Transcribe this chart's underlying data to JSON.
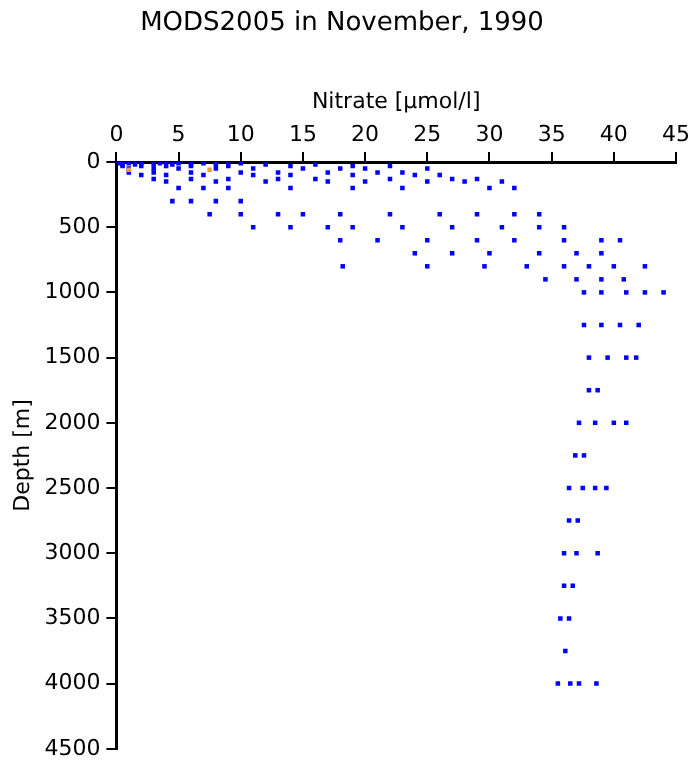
{
  "chart_data": {
    "type": "scatter",
    "title": "MODS2005 in November, 1990",
    "xlabel": "Nitrate [μmol/l]",
    "ylabel": "Depth [m]",
    "xlim": [
      0,
      45
    ],
    "xticks": [
      0,
      5,
      10,
      15,
      20,
      25,
      30,
      35,
      40,
      45
    ],
    "ylim": [
      4500,
      0
    ],
    "yticks": [
      0,
      500,
      1000,
      1500,
      2000,
      2500,
      3000,
      3500,
      4000,
      4500
    ],
    "marker": "square",
    "series": [
      {
        "color": "#0000ff",
        "x": [
          0.2,
          0.5,
          1,
          1.5,
          2,
          3,
          4,
          5,
          6,
          8,
          9,
          0.3,
          1,
          2,
          3.5,
          5,
          7,
          10,
          0.5,
          1.5,
          3,
          4.5,
          6,
          8,
          12,
          16,
          0.5,
          2,
          4,
          6,
          9,
          14,
          19,
          22,
          1,
          3,
          5,
          8,
          11,
          15,
          18,
          20,
          25,
          1,
          3,
          6,
          10,
          13,
          17,
          21,
          23,
          2,
          4,
          7,
          11,
          14,
          19,
          24,
          26,
          3,
          6,
          9,
          13,
          16,
          22,
          27,
          29,
          4,
          8,
          12,
          17,
          20,
          25,
          28,
          31,
          5,
          7,
          9,
          14,
          19,
          23,
          30,
          32,
          4.5,
          6,
          8,
          10,
          7.5,
          10,
          13,
          15,
          18,
          22,
          26,
          29,
          32,
          34,
          11,
          14,
          17,
          19,
          23,
          27,
          31,
          34,
          36,
          18,
          21,
          25,
          29,
          32,
          36,
          39,
          40.5,
          24,
          27,
          30,
          34,
          37,
          39,
          18.2,
          25,
          29.6,
          33,
          36,
          38,
          40,
          42.5,
          34.5,
          37,
          39,
          40.8,
          37.6,
          39,
          41,
          42.5,
          44,
          37.6,
          39,
          40.5,
          42,
          38,
          39.5,
          41,
          41.8,
          38,
          38.7,
          37.2,
          38.5,
          40,
          41,
          36.9,
          37.6,
          36.4,
          37.5,
          38.5,
          39.4,
          36.4,
          37.1,
          36,
          37,
          38.7,
          36,
          36.7,
          35.7,
          36.4,
          36.1,
          35.5,
          36.5,
          37.2,
          38.6
        ],
        "values": [
          0,
          0,
          0,
          0,
          0,
          0,
          0,
          0,
          0,
          0,
          0,
          10,
          10,
          10,
          10,
          10,
          10,
          10,
          20,
          20,
          20,
          20,
          20,
          20,
          20,
          20,
          30,
          30,
          30,
          30,
          30,
          30,
          30,
          30,
          50,
          50,
          50,
          50,
          50,
          50,
          50,
          50,
          50,
          80,
          80,
          80,
          80,
          80,
          80,
          80,
          80,
          100,
          100,
          100,
          100,
          100,
          100,
          100,
          100,
          130,
          130,
          130,
          130,
          130,
          130,
          130,
          130,
          150,
          150,
          150,
          150,
          150,
          150,
          150,
          150,
          200,
          200,
          200,
          200,
          200,
          200,
          200,
          200,
          300,
          300,
          300,
          300,
          400,
          400,
          400,
          400,
          400,
          400,
          400,
          400,
          400,
          400,
          500,
          500,
          500,
          500,
          500,
          500,
          500,
          500,
          500,
          600,
          600,
          600,
          600,
          600,
          600,
          600,
          600,
          700,
          700,
          700,
          700,
          700,
          700,
          800,
          800,
          800,
          800,
          800,
          800,
          800,
          800,
          900,
          900,
          900,
          900,
          1000,
          1000,
          1000,
          1000,
          1000,
          1250,
          1250,
          1250,
          1250,
          1500,
          1500,
          1500,
          1500,
          1750,
          1750,
          2000,
          2000,
          2000,
          2000,
          2250,
          2250,
          2500,
          2500,
          2500,
          2500,
          2750,
          2750,
          3000,
          3000,
          3000,
          3250,
          3250,
          3500,
          3500,
          3750,
          4000,
          4000,
          4000,
          4000
        ]
      },
      {
        "color": "#f0a020",
        "x": [
          1,
          7.5
        ],
        "values": [
          60,
          60
        ]
      }
    ]
  }
}
